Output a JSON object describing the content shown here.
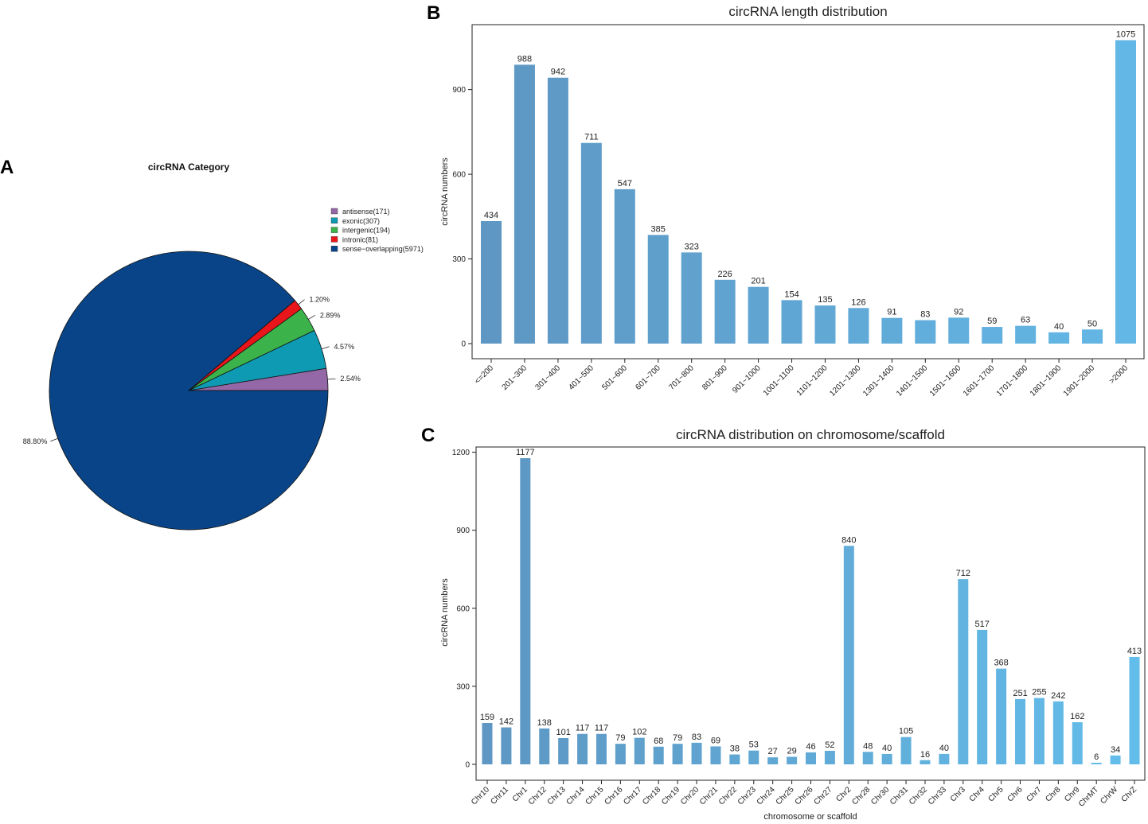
{
  "panel_labels": {
    "a": "A",
    "b": "B",
    "c": "C"
  },
  "chart_data": [
    {
      "id": "A",
      "type": "pie",
      "title": "circRNA Category",
      "slices": [
        {
          "name": "antisense",
          "legend": "antisense(171)",
          "count": 171,
          "percent_label": "2.54%",
          "color": "#9467a6"
        },
        {
          "name": "exonic",
          "legend": "exonic(307)",
          "count": 307,
          "percent_label": "4.57%",
          "color": "#0e9ab3"
        },
        {
          "name": "intergenic",
          "legend": "intergenic(194)",
          "count": 194,
          "percent_label": "2.89%",
          "color": "#3cb34a"
        },
        {
          "name": "intronic",
          "legend": "intronic(81)",
          "count": 81,
          "percent_label": "1.20%",
          "color": "#e8161b"
        },
        {
          "name": "sense-overlapping",
          "legend": "sense−overlapping(5971)",
          "count": 5971,
          "percent_label": "88.80%",
          "color": "#084487"
        }
      ],
      "legend_position": "top-right"
    },
    {
      "id": "B",
      "type": "bar",
      "title": "circRNA length distribution",
      "xlabel": "",
      "ylabel": "circRNA numbers",
      "ylim": [
        0,
        1130
      ],
      "yticks": [
        0,
        300,
        600,
        900
      ],
      "categories": [
        "<=200",
        "201~300",
        "301~400",
        "401~500",
        "501~600",
        "601~700",
        "701~800",
        "801~900",
        "901~1000",
        "1001~1100",
        "1101~1200",
        "1201~1300",
        "1301~1400",
        "1401~1500",
        "1501~1600",
        "1601~1700",
        "1701~1800",
        "1801~1900",
        "1901~2000",
        ">2000"
      ],
      "values": [
        434,
        988,
        942,
        711,
        547,
        385,
        323,
        226,
        201,
        154,
        135,
        126,
        91,
        83,
        92,
        59,
        63,
        40,
        50,
        1075
      ],
      "color_start": "#5e97c3",
      "color_end": "#63b7e6"
    },
    {
      "id": "C",
      "type": "bar",
      "title": "circRNA distribution on chromosome/scaffold",
      "xlabel": "chromosome or scaffold",
      "ylabel": "circRNA numbers",
      "ylim": [
        0,
        1220
      ],
      "yticks": [
        0,
        300,
        600,
        900,
        1200
      ],
      "categories": [
        "Chr10",
        "Chr11",
        "Chr1",
        "Chr12",
        "Chr13",
        "Chr14",
        "Chr15",
        "Chr16",
        "Chr17",
        "Chr18",
        "Chr19",
        "Chr20",
        "Chr21",
        "Chr22",
        "Chr23",
        "Chr24",
        "Chr25",
        "Chr26",
        "Chr27",
        "Chr2",
        "Chr28",
        "Chr30",
        "Chr31",
        "Chr32",
        "Chr33",
        "Chr3",
        "Chr4",
        "Chr5",
        "Chr6",
        "Chr7",
        "Chr8",
        "Chr9",
        "ChrMT",
        "ChrW",
        "ChrZ"
      ],
      "values": [
        159,
        142,
        1177,
        138,
        101,
        117,
        117,
        79,
        102,
        68,
        79,
        83,
        69,
        38,
        53,
        27,
        29,
        46,
        52,
        840,
        48,
        40,
        105,
        16,
        40,
        712,
        517,
        368,
        251,
        255,
        242,
        162,
        6,
        34,
        413
      ],
      "color_start": "#5e97c3",
      "color_end": "#63bdea"
    }
  ]
}
